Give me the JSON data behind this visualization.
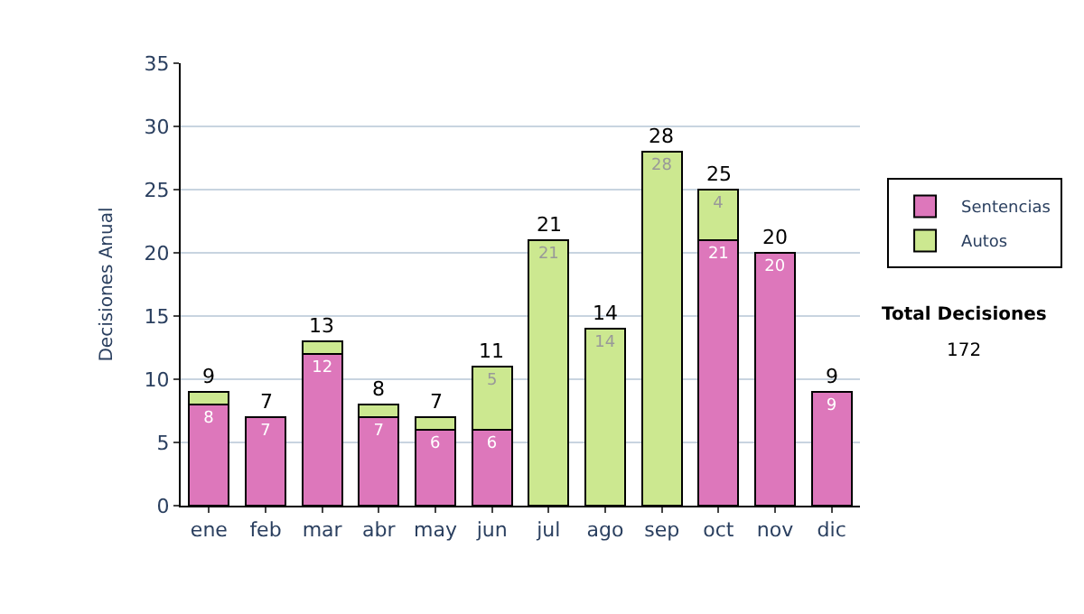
{
  "chart_data": {
    "type": "bar",
    "stacked": true,
    "ylabel": "Decisiones Anual",
    "categories": [
      "ene",
      "feb",
      "mar",
      "abr",
      "may",
      "jun",
      "jul",
      "ago",
      "sep",
      "oct",
      "nov",
      "dic"
    ],
    "series": [
      {
        "name": "Sentencias",
        "color": "#dd77bb",
        "values": [
          8,
          7,
          12,
          7,
          6,
          6,
          null,
          null,
          null,
          21,
          20,
          9
        ],
        "value_labels": [
          "8",
          "7",
          "12",
          "7",
          "6",
          "6",
          null,
          null,
          null,
          "21",
          "20",
          "9"
        ]
      },
      {
        "name": "Autos",
        "color": "#cce890",
        "values": [
          1,
          null,
          1,
          1,
          1,
          5,
          21,
          14,
          28,
          4,
          null,
          null
        ],
        "value_labels": [
          null,
          null,
          null,
          null,
          null,
          "5",
          "21",
          "14",
          "28",
          "4",
          null,
          null
        ]
      }
    ],
    "totals": [
      "9",
      "7",
      "13",
      "8",
      "7",
      "11",
      "21",
      "14",
      "28",
      "25",
      "20",
      "9"
    ],
    "ylim": [
      0,
      35
    ],
    "yticks": [
      0,
      5,
      10,
      15,
      20,
      25,
      30,
      35
    ],
    "grid": "y",
    "legend": "right",
    "annotations": [
      "Total Decisiones",
      "172"
    ]
  }
}
